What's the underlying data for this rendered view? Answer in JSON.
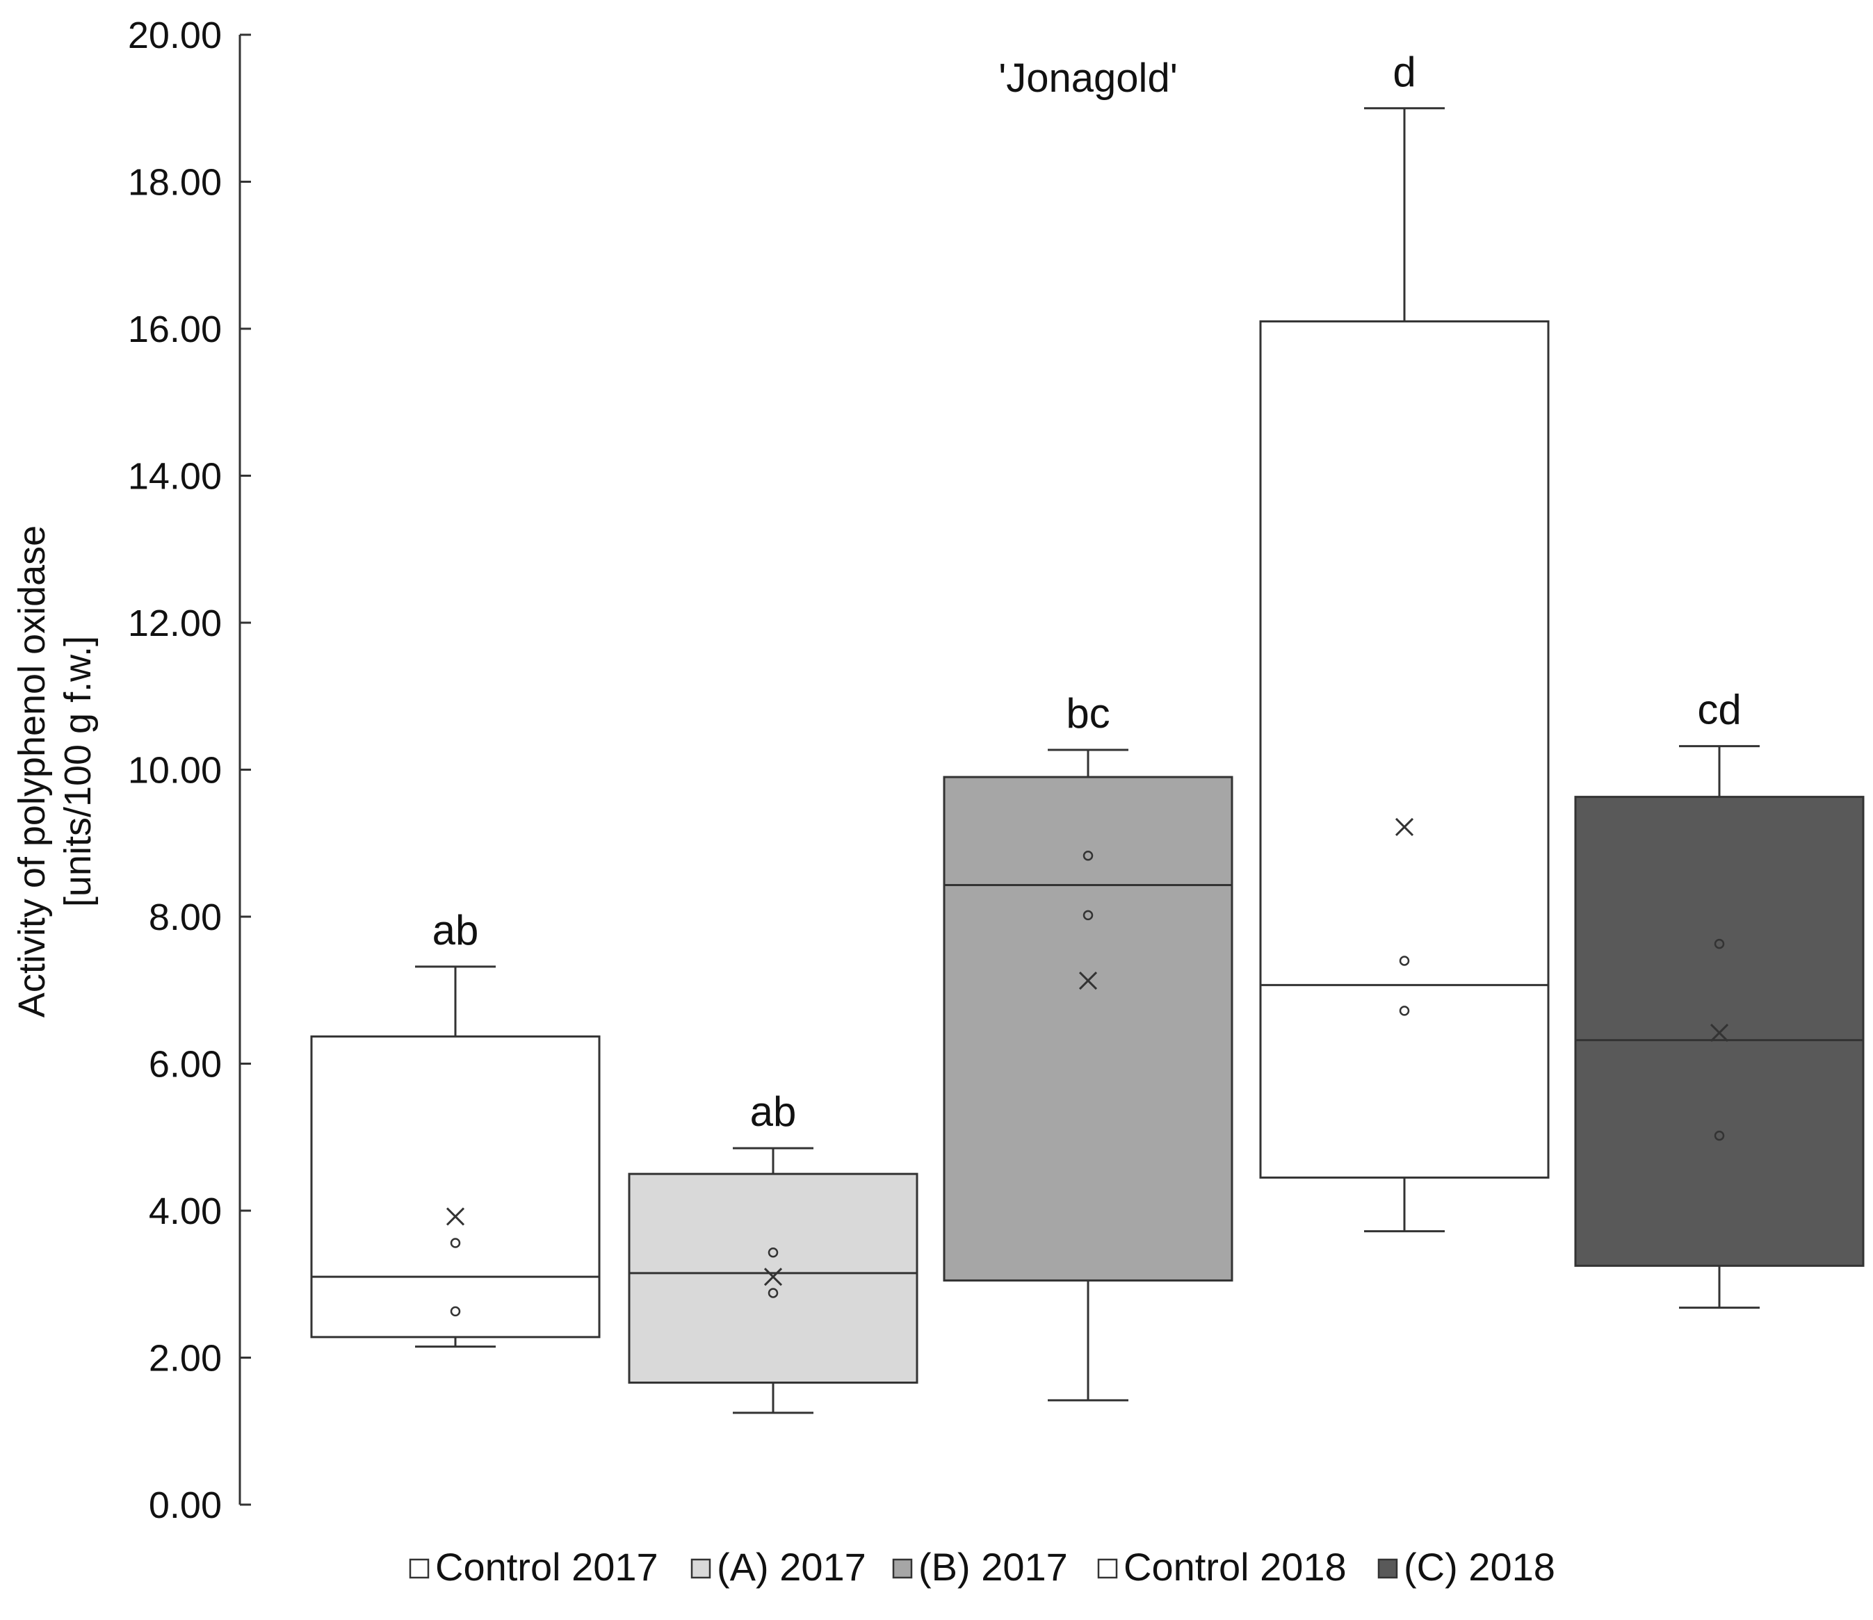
{
  "chart_data": {
    "type": "box",
    "title": "'Jonagold'",
    "xlabel": "",
    "ylabel_lines": [
      "Activity of polyphenol oxidase",
      "[units/100 g f.w.]"
    ],
    "ylim": [
      0,
      20
    ],
    "y_ticks": [
      "0.00",
      "2.00",
      "4.00",
      "6.00",
      "8.00",
      "10.00",
      "12.00",
      "14.00",
      "16.00",
      "18.00",
      "20.00"
    ],
    "y_tick_values": [
      0,
      2,
      4,
      6,
      8,
      10,
      12,
      14,
      16,
      18,
      20
    ],
    "legend_position": "bottom",
    "series": [
      {
        "name": "Control 2017",
        "color": "#ffffff",
        "letter": "ab",
        "whisker_low": 2.15,
        "q1": 2.28,
        "median": 3.1,
        "q3": 6.37,
        "whisker_high": 7.32,
        "mean": 3.92,
        "points": [
          3.56,
          2.63
        ]
      },
      {
        "name": "(A) 2017",
        "color": "#d9d9d9",
        "letter": "ab",
        "whisker_low": 1.25,
        "q1": 1.66,
        "median": 3.15,
        "q3": 4.5,
        "whisker_high": 4.85,
        "mean": 3.1,
        "points": [
          3.43,
          2.88
        ]
      },
      {
        "name": "(B) 2017",
        "color": "#a6a6a6",
        "letter": "bc",
        "whisker_low": 1.42,
        "q1": 3.05,
        "median": 8.43,
        "q3": 9.9,
        "whisker_high": 10.27,
        "mean": 7.13,
        "points": [
          8.83,
          8.02
        ]
      },
      {
        "name": "Control 2018",
        "color": "#ffffff",
        "letter": "d",
        "whisker_low": 3.72,
        "q1": 4.45,
        "median": 7.07,
        "q3": 16.1,
        "whisker_high": 19.0,
        "mean": 9.22,
        "points": [
          7.4,
          6.72
        ]
      },
      {
        "name": "(C) 2018",
        "color": "#595959",
        "letter": "cd",
        "whisker_low": 2.68,
        "q1": 3.25,
        "median": 6.32,
        "q3": 9.63,
        "whisker_high": 10.32,
        "mean": 6.42,
        "points": [
          7.63,
          5.02
        ]
      }
    ]
  }
}
